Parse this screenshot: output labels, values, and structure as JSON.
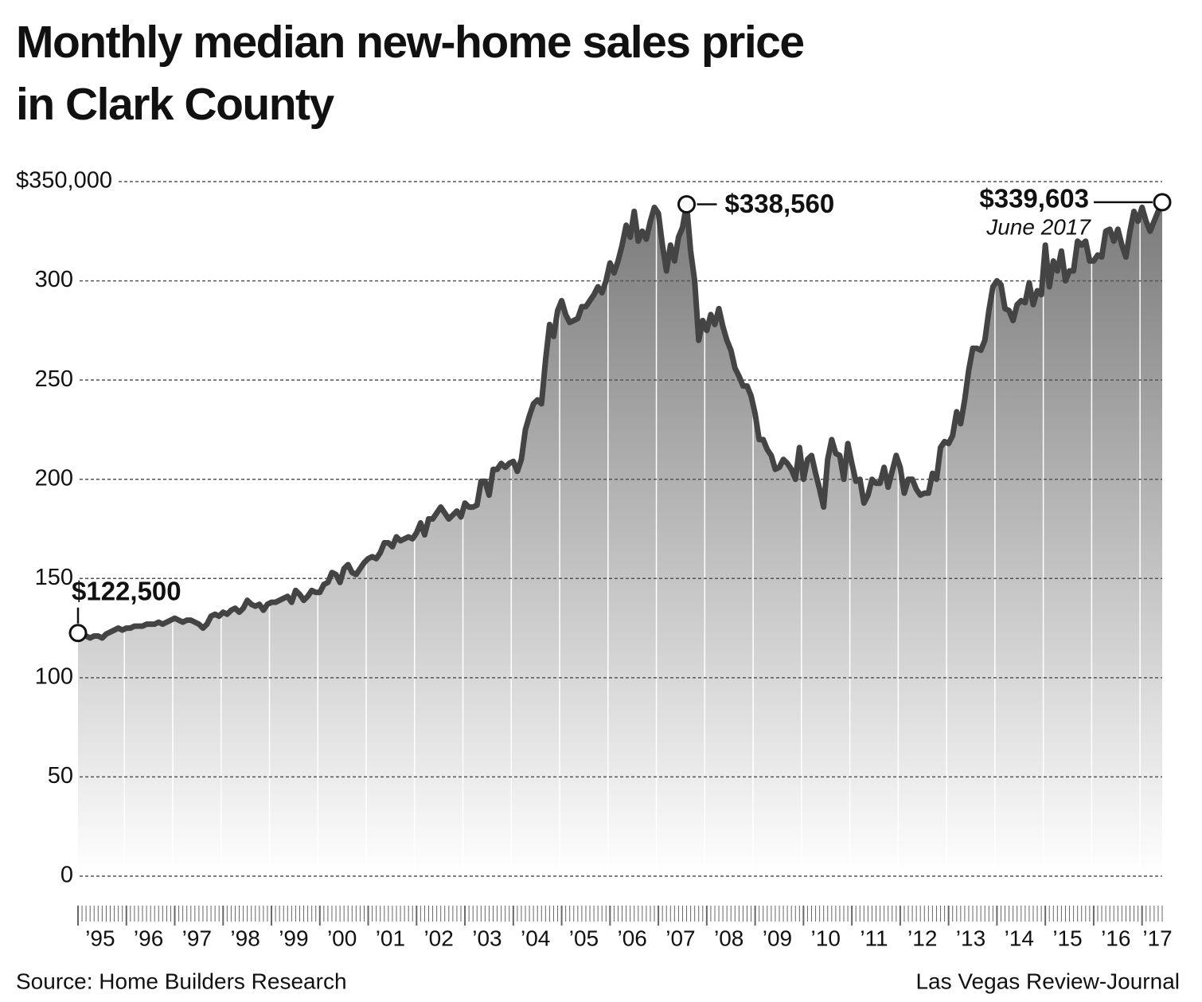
{
  "chart_data": {
    "type": "area",
    "title": "Monthly median new-home sales price in Clark County",
    "source": "Source: Home Builders Research",
    "credit": "Las Vegas Review-Journal",
    "annotations": [
      "June 2017"
    ],
    "color": "#444444",
    "grid": true,
    "ylim": [
      0,
      350000
    ],
    "yticks": [
      0,
      {
        "value": 50000,
        "label": "50"
      },
      {
        "value": 100000,
        "label": "100"
      },
      {
        "value": 150000,
        "label": "150"
      },
      {
        "value": 200000,
        "label": "200"
      },
      {
        "value": 250000,
        "label": "250"
      },
      {
        "value": 300000,
        "label": "300"
      },
      {
        "value": 350000,
        "label": "$350,000"
      }
    ],
    "categories": [
      null,
      null,
      null,
      null,
      null,
      null,
      "’95",
      null,
      null,
      null,
      null,
      null,
      null,
      null,
      null,
      null,
      null,
      null,
      "’96",
      null,
      null,
      null,
      null,
      null,
      null,
      null,
      null,
      null,
      null,
      null,
      "’97",
      null,
      null,
      null,
      null,
      null,
      null,
      null,
      null,
      null,
      null,
      null,
      "’98",
      null,
      null,
      null,
      null,
      null,
      null,
      null,
      null,
      null,
      null,
      null,
      "’99",
      null,
      null,
      null,
      null,
      null,
      null,
      null,
      null,
      null,
      null,
      null,
      "’00",
      null,
      null,
      null,
      null,
      null,
      null,
      null,
      null,
      null,
      null,
      null,
      "’01",
      null,
      null,
      null,
      null,
      null,
      null,
      null,
      null,
      null,
      null,
      null,
      "’02",
      null,
      null,
      null,
      null,
      null,
      null,
      null,
      null,
      null,
      null,
      null,
      "’03",
      null,
      null,
      null,
      null,
      null,
      null,
      null,
      null,
      null,
      null,
      null,
      "’04",
      null,
      null,
      null,
      null,
      null,
      null,
      null,
      null,
      null,
      null,
      null,
      "’05",
      null,
      null,
      null,
      null,
      null,
      null,
      null,
      null,
      null,
      null,
      null,
      "’06",
      null,
      null,
      null,
      null,
      null,
      null,
      null,
      null,
      null,
      null,
      null,
      "’07",
      null,
      null,
      null,
      null,
      null,
      null,
      null,
      null,
      null,
      null,
      null,
      "’08",
      null,
      null,
      null,
      null,
      null,
      null,
      null,
      null,
      null,
      null,
      null,
      "’09",
      null,
      null,
      null,
      null,
      null,
      null,
      null,
      null,
      null,
      null,
      null,
      "’10",
      null,
      null,
      null,
      null,
      null,
      null,
      null,
      null,
      null,
      null,
      null,
      "’11",
      null,
      null,
      null,
      null,
      null,
      null,
      null,
      null,
      null,
      null,
      null,
      "’12",
      null,
      null,
      null,
      null,
      null,
      null,
      null,
      null,
      null,
      null,
      null,
      "’13",
      null,
      null,
      null,
      null,
      null,
      null,
      null,
      null,
      null,
      null,
      null,
      "’14",
      null,
      null,
      null,
      null,
      null,
      null,
      null,
      null,
      null,
      null,
      null,
      "’15",
      null,
      null,
      null,
      null,
      null,
      null,
      null,
      null,
      null,
      null,
      null,
      "’16",
      null,
      null,
      null,
      null,
      null,
      null,
      null,
      null,
      null,
      "’17",
      null
    ],
    "values": [
      122500,
      121000,
      121000,
      120000,
      121000,
      121000,
      120000,
      122000,
      123000,
      124000,
      125000,
      124000,
      125000,
      125000,
      126000,
      126000,
      126000,
      127000,
      127000,
      127000,
      128000,
      127000,
      128000,
      129000,
      130000,
      129000,
      128000,
      129000,
      129000,
      128000,
      127000,
      125000,
      127000,
      131000,
      132000,
      131000,
      133000,
      132000,
      134000,
      135000,
      133000,
      135000,
      139000,
      137000,
      136000,
      137000,
      134000,
      137000,
      138000,
      138000,
      139000,
      140000,
      141000,
      138000,
      144000,
      142000,
      139000,
      141000,
      144000,
      143000,
      143000,
      147000,
      148000,
      153000,
      152000,
      148000,
      155000,
      157000,
      153000,
      152000,
      155000,
      158000,
      160000,
      161000,
      160000,
      163000,
      168000,
      168000,
      166000,
      171000,
      169000,
      170000,
      171000,
      170000,
      173000,
      178000,
      172000,
      180000,
      180000,
      183000,
      186000,
      183000,
      180000,
      182000,
      184000,
      181000,
      188000,
      186000,
      186000,
      187000,
      199000,
      199000,
      192000,
      205000,
      205000,
      208000,
      206000,
      208000,
      209000,
      204000,
      210000,
      225000,
      232000,
      238000,
      240000,
      238000,
      260000,
      278000,
      272000,
      285000,
      290000,
      283000,
      279000,
      280000,
      281000,
      287000,
      287000,
      290000,
      293000,
      297000,
      294000,
      300000,
      309000,
      304000,
      310000,
      318000,
      328000,
      322000,
      335000,
      320000,
      325000,
      321000,
      330000,
      337000,
      334000,
      318000,
      305000,
      318000,
      310000,
      322000,
      327000,
      338560,
      315000,
      300000,
      270000,
      280000,
      275000,
      283000,
      278000,
      286000,
      277000,
      270000,
      265000,
      256000,
      252000,
      247000,
      247000,
      242000,
      233000,
      220000,
      220000,
      215000,
      212000,
      205000,
      206000,
      210000,
      208000,
      205000,
      200000,
      216000,
      200000,
      210000,
      212000,
      203000,
      195000,
      186000,
      210000,
      220000,
      213000,
      212000,
      200000,
      218000,
      208000,
      199000,
      200000,
      188000,
      192000,
      200000,
      198000,
      198000,
      206000,
      196000,
      204000,
      212000,
      206000,
      193000,
      200000,
      200000,
      195000,
      192000,
      193000,
      193000,
      203000,
      200000,
      216000,
      219000,
      218000,
      222000,
      234000,
      228000,
      240000,
      255000,
      266000,
      266000,
      265000,
      270000,
      285000,
      297000,
      300000,
      298000,
      286000,
      285000,
      280000,
      288000,
      290000,
      289000,
      299000,
      288000,
      295000,
      293000,
      318000,
      297000,
      310000,
      305000,
      315000,
      300000,
      305000,
      305000,
      320000,
      318000,
      320000,
      310000,
      310000,
      313000,
      312000,
      325000,
      326000,
      320000,
      326000,
      318000,
      312000,
      325000,
      335000,
      330000,
      337000,
      330000,
      325000,
      330000,
      335000,
      339603
    ],
    "value_labels": [
      "$122,500",
      null,
      null,
      null,
      null,
      null,
      null,
      null,
      null,
      null,
      null,
      null,
      null,
      null,
      null,
      null,
      null,
      null,
      null,
      null,
      null,
      null,
      null,
      null,
      null,
      null,
      null,
      null,
      null,
      null,
      null,
      null,
      null,
      null,
      null,
      null,
      null,
      null,
      null,
      null,
      null,
      null,
      null,
      null,
      null,
      null,
      null,
      null,
      null,
      null,
      null,
      null,
      null,
      null,
      null,
      null,
      null,
      null,
      null,
      null,
      null,
      null,
      null,
      null,
      null,
      null,
      null,
      null,
      null,
      null,
      null,
      null,
      null,
      null,
      null,
      null,
      null,
      null,
      null,
      null,
      null,
      null,
      null,
      null,
      null,
      null,
      null,
      null,
      null,
      null,
      null,
      null,
      null,
      null,
      null,
      null,
      null,
      null,
      null,
      null,
      null,
      null,
      null,
      null,
      null,
      null,
      null,
      null,
      null,
      null,
      null,
      null,
      null,
      null,
      null,
      null,
      null,
      null,
      null,
      null,
      null,
      null,
      null,
      null,
      null,
      null,
      null,
      null,
      null,
      null,
      null,
      null,
      null,
      null,
      null,
      null,
      null,
      null,
      null,
      null,
      null,
      null,
      null,
      null,
      null,
      null,
      null,
      null,
      null,
      null,
      null,
      "$338,560",
      null,
      null,
      null,
      null,
      null,
      null,
      null,
      null,
      null,
      null,
      null,
      null,
      null,
      null,
      null,
      null,
      null,
      null,
      null,
      null,
      null,
      null,
      null,
      null,
      null,
      null,
      null,
      null,
      null,
      null,
      null,
      null,
      null,
      null,
      null,
      null,
      null,
      null,
      null,
      null,
      null,
      null,
      null,
      null,
      null,
      null,
      null,
      null,
      null,
      null,
      null,
      null,
      null,
      null,
      null,
      null,
      null,
      null,
      null,
      null,
      null,
      null,
      null,
      null,
      null,
      null,
      null,
      null,
      null,
      null,
      null,
      null,
      null,
      null,
      null,
      null,
      null,
      null,
      null,
      null,
      null,
      null,
      null,
      null,
      null,
      null,
      null,
      null,
      null,
      null,
      null,
      null,
      null,
      null,
      null,
      null,
      null,
      null,
      null,
      null,
      null,
      null,
      null,
      null,
      null,
      null,
      null,
      null,
      null,
      null,
      null,
      null,
      null,
      null,
      null,
      null,
      null,
      "$339,603"
    ]
  }
}
